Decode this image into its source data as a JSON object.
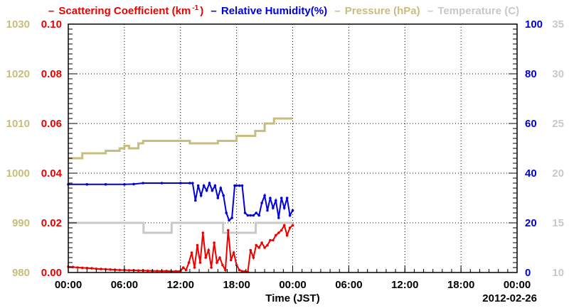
{
  "chart_data": {
    "type": "line",
    "date_label": "2012-02-26",
    "xlabel": "Time (JST)",
    "x_ticks": [
      "00:00",
      "06:00",
      "12:00",
      "18:00",
      "00:00",
      "06:00",
      "12:00",
      "18:00",
      "00:00"
    ],
    "x_range_hours": [
      0,
      48
    ],
    "grid": true,
    "legend_position": "top",
    "axes": {
      "scattering": {
        "side": "left-inner",
        "range": [
          0,
          0.1
        ],
        "ticks": [
          "0.00",
          "0.02",
          "0.04",
          "0.06",
          "0.08",
          "0.10"
        ],
        "color": "#ee0000"
      },
      "pressure": {
        "side": "left-outer",
        "range": [
          980,
          1030
        ],
        "ticks": [
          "980",
          "990",
          "1000",
          "1010",
          "1020",
          "1030"
        ],
        "color": "#c8bd7c"
      },
      "humidity": {
        "side": "right-inner",
        "range": [
          0,
          100
        ],
        "ticks": [
          "0",
          "20",
          "40",
          "60",
          "80",
          "100"
        ],
        "color": "#0000dd"
      },
      "temperature": {
        "side": "right-outer",
        "range": [
          10,
          35
        ],
        "ticks": [
          "10",
          "15",
          "20",
          "25",
          "30",
          "35"
        ],
        "color": "#c8c8c8"
      }
    },
    "series": [
      {
        "name_text": "Scattering Coefficient (km",
        "name_sup": "-1",
        "name_end": ")",
        "axis": "scattering",
        "color": "#ee0000",
        "x": [
          0,
          0.5,
          1,
          1.5,
          2,
          2.5,
          3,
          3.5,
          4,
          4.5,
          5,
          5.5,
          6,
          6.5,
          7,
          7.5,
          8,
          8.5,
          9,
          9.5,
          10,
          10.5,
          11,
          11.5,
          12,
          12.3,
          12.6,
          12.9,
          13.2,
          13.5,
          13.8,
          14.1,
          14.4,
          14.7,
          15,
          15.3,
          15.6,
          15.9,
          16.2,
          16.5,
          16.8,
          17.1,
          17.4,
          17.7,
          18,
          18.3,
          18.6,
          18.9,
          19.2,
          19.5,
          19.8,
          20.1,
          20.4,
          20.7,
          21,
          21.3,
          21.6,
          21.9,
          22.2,
          22.5,
          22.8,
          23.1,
          23.4,
          23.7,
          24
        ],
        "y": [
          0.0023,
          0.0022,
          0.002,
          0.0019,
          0.0018,
          0.0017,
          0.0015,
          0.0014,
          0.0013,
          0.0012,
          0.0011,
          0.001,
          0.001,
          0.0009,
          0.0009,
          0.0008,
          0.0008,
          0.0007,
          0.0007,
          0.0006,
          0.0006,
          0.0006,
          0.0005,
          0.0005,
          0.0006,
          0.002,
          0.001,
          0.004,
          0.008,
          0.002,
          0.011,
          0.004,
          0.016,
          0.006,
          0.009,
          0.002,
          0.012,
          0.004,
          0.006,
          0.003,
          0.001,
          0.017,
          0.005,
          0.008,
          0.003,
          0.001,
          0.0005,
          0.0004,
          0.0003,
          0.009,
          0.006,
          0.011,
          0.01,
          0.012,
          0.01,
          0.011,
          0.013,
          0.013,
          0.015,
          0.016,
          0.017,
          0.019,
          0.015,
          0.018,
          0.019
        ]
      },
      {
        "name_text": "Relative Humidity(%)",
        "axis": "humidity",
        "color": "#0000dd",
        "x": [
          0,
          2,
          4,
          6,
          7,
          8,
          10,
          12,
          13,
          13.3,
          13.6,
          13.9,
          14.2,
          14.5,
          14.8,
          15.1,
          15.4,
          15.7,
          16,
          16.3,
          16.6,
          16.9,
          17.2,
          17.5,
          17.8,
          18,
          18.3,
          18.6,
          18.9,
          19.2,
          19.5,
          19.8,
          20.1,
          20.4,
          20.7,
          21,
          21.3,
          21.6,
          21.9,
          22.2,
          22.5,
          22.8,
          23.1,
          23.4,
          23.7,
          24
        ],
        "y": [
          35.5,
          35.5,
          35.5,
          35.5,
          35.6,
          36,
          36,
          36,
          36,
          36,
          29,
          35,
          31,
          35,
          33,
          36,
          33,
          35,
          30,
          34,
          31,
          24,
          21,
          22,
          35,
          35,
          35,
          35,
          24,
          23,
          23,
          23,
          24,
          23,
          28,
          31,
          25,
          30,
          26,
          29,
          22,
          30,
          26,
          30,
          23,
          25
        ]
      },
      {
        "name_text": "Pressure (hPa)",
        "axis": "pressure",
        "color": "#c8bd7c",
        "x": [
          0,
          1,
          1.5,
          3,
          4,
          5.5,
          6,
          6.5,
          7.5,
          8,
          12.5,
          13,
          15,
          16,
          17.5,
          18,
          20,
          21,
          22,
          24
        ],
        "y": [
          1003,
          1003,
          1004,
          1004,
          1004.5,
          1005,
          1005.5,
          1005,
          1006,
          1006.5,
          1006.5,
          1006,
          1006,
          1006.5,
          1006.5,
          1007.5,
          1008.5,
          1010,
          1011,
          1011
        ]
      },
      {
        "name_text": "Temperature (C)",
        "axis": "temperature",
        "color": "#c8c8c8",
        "x": [
          0,
          8,
          8.05,
          11,
          11.05,
          16.5,
          16.55,
          20,
          20.05,
          24
        ],
        "y": [
          15,
          15,
          14,
          14,
          15,
          15,
          14,
          14,
          15,
          15
        ]
      }
    ]
  }
}
